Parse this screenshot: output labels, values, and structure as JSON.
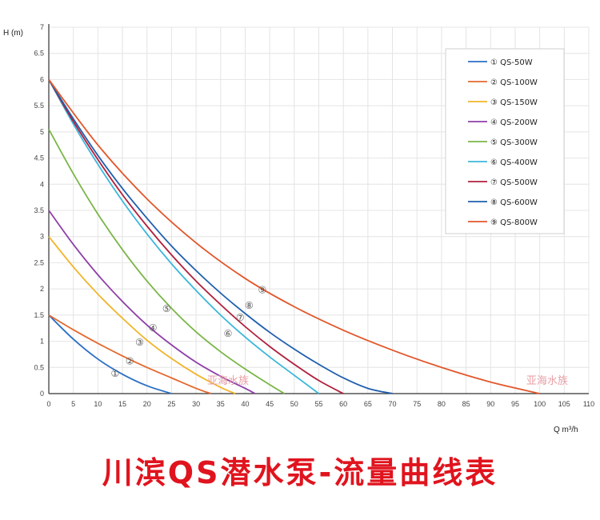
{
  "chart_data": {
    "type": "line",
    "xlabel": "Q m³/h",
    "ylabel": "H (m)",
    "xlim": [
      0,
      110
    ],
    "ylim": [
      0,
      7
    ],
    "xticks": [
      0,
      5,
      10,
      15,
      20,
      25,
      30,
      35,
      40,
      45,
      50,
      55,
      60,
      65,
      70,
      75,
      80,
      85,
      90,
      95,
      100,
      105,
      110
    ],
    "yticks": [
      0,
      0.5,
      1,
      1.5,
      2,
      2.5,
      3,
      3.5,
      4,
      4.5,
      5,
      5.5,
      6,
      6.5,
      7
    ],
    "grid": true,
    "legend_position": "top-right",
    "series": [
      {
        "name": "① QS-50W",
        "marker": "①",
        "color": "#2a6fc4",
        "x": [
          0,
          5,
          10,
          15,
          20,
          25
        ],
        "y": [
          1.5,
          1.04,
          0.66,
          0.37,
          0.15,
          0
        ]
      },
      {
        "name": "② QS-100W",
        "marker": "②",
        "color": "#e4682e",
        "x": [
          0,
          5,
          10,
          15,
          20,
          25,
          30,
          33
        ],
        "y": [
          1.5,
          1.22,
          0.96,
          0.72,
          0.5,
          0.3,
          0.1,
          0
        ]
      },
      {
        "name": "③ QS-150W",
        "marker": "③",
        "color": "#f0b429",
        "x": [
          0,
          5,
          10,
          15,
          20,
          25,
          30,
          35,
          38
        ],
        "y": [
          3.0,
          2.42,
          1.9,
          1.44,
          1.02,
          0.67,
          0.37,
          0.12,
          0
        ]
      },
      {
        "name": "④ QS-200W",
        "marker": "④",
        "color": "#8e3fa8",
        "x": [
          0,
          5,
          10,
          15,
          20,
          25,
          30,
          35,
          40,
          42
        ],
        "y": [
          3.5,
          2.85,
          2.27,
          1.76,
          1.31,
          0.93,
          0.6,
          0.33,
          0.1,
          0
        ]
      },
      {
        "name": "⑤ QS-300W",
        "marker": "⑤",
        "color": "#7ab648",
        "x": [
          0,
          5,
          10,
          15,
          20,
          25,
          30,
          35,
          40,
          45,
          48
        ],
        "y": [
          5.05,
          4.2,
          3.43,
          2.75,
          2.15,
          1.63,
          1.18,
          0.8,
          0.47,
          0.17,
          0
        ]
      },
      {
        "name": "⑥ QS-400W",
        "marker": "⑥",
        "color": "#3cb7dc",
        "x": [
          0,
          5,
          10,
          15,
          20,
          25,
          30,
          35,
          40,
          45,
          50,
          55
        ],
        "y": [
          6.0,
          5.15,
          4.38,
          3.68,
          3.05,
          2.48,
          1.97,
          1.5,
          1.08,
          0.7,
          0.35,
          0
        ]
      },
      {
        "name": "⑦ QS-500W",
        "marker": "⑦",
        "color": "#b0203c",
        "x": [
          0,
          5,
          10,
          15,
          20,
          25,
          30,
          35,
          40,
          45,
          50,
          55,
          60
        ],
        "y": [
          6.0,
          5.2,
          4.47,
          3.8,
          3.2,
          2.65,
          2.15,
          1.7,
          1.28,
          0.9,
          0.56,
          0.25,
          0
        ]
      },
      {
        "name": "⑧ QS-600W",
        "marker": "⑧",
        "color": "#1f5fae",
        "x": [
          0,
          5,
          10,
          15,
          20,
          25,
          30,
          35,
          40,
          45,
          50,
          55,
          60,
          65,
          70
        ],
        "y": [
          6.0,
          5.25,
          4.55,
          3.92,
          3.35,
          2.82,
          2.35,
          1.92,
          1.53,
          1.17,
          0.85,
          0.56,
          0.3,
          0.1,
          0
        ]
      },
      {
        "name": "⑨ QS-800W",
        "marker": "⑨",
        "color": "#e2572b",
        "x": [
          0,
          10,
          20,
          30,
          40,
          50,
          60,
          70,
          80,
          90,
          100
        ],
        "y": [
          6.0,
          4.75,
          3.72,
          2.88,
          2.2,
          1.66,
          1.21,
          0.83,
          0.5,
          0.22,
          0
        ]
      }
    ],
    "curve_markers": [
      {
        "label": "①",
        "x": 13.5,
        "y": 0.38
      },
      {
        "label": "②",
        "x": 16.5,
        "y": 0.62
      },
      {
        "label": "③",
        "x": 18.5,
        "y": 0.98
      },
      {
        "label": "④",
        "x": 21.2,
        "y": 1.25
      },
      {
        "label": "⑤",
        "x": 24.0,
        "y": 1.62
      },
      {
        "label": "⑥",
        "x": 36.5,
        "y": 1.15
      },
      {
        "label": "⑦",
        "x": 39.0,
        "y": 1.45
      },
      {
        "label": "⑧",
        "x": 40.8,
        "y": 1.68
      },
      {
        "label": "⑨",
        "x": 43.5,
        "y": 1.98
      }
    ],
    "watermarks": [
      {
        "text": "亚海水族",
        "x": 36.5,
        "y": 0.18
      },
      {
        "text": "亚海水族",
        "x": 101.5,
        "y": 0.18
      }
    ]
  },
  "footer_title": "川滨QS潜水泵-流量曲线表"
}
